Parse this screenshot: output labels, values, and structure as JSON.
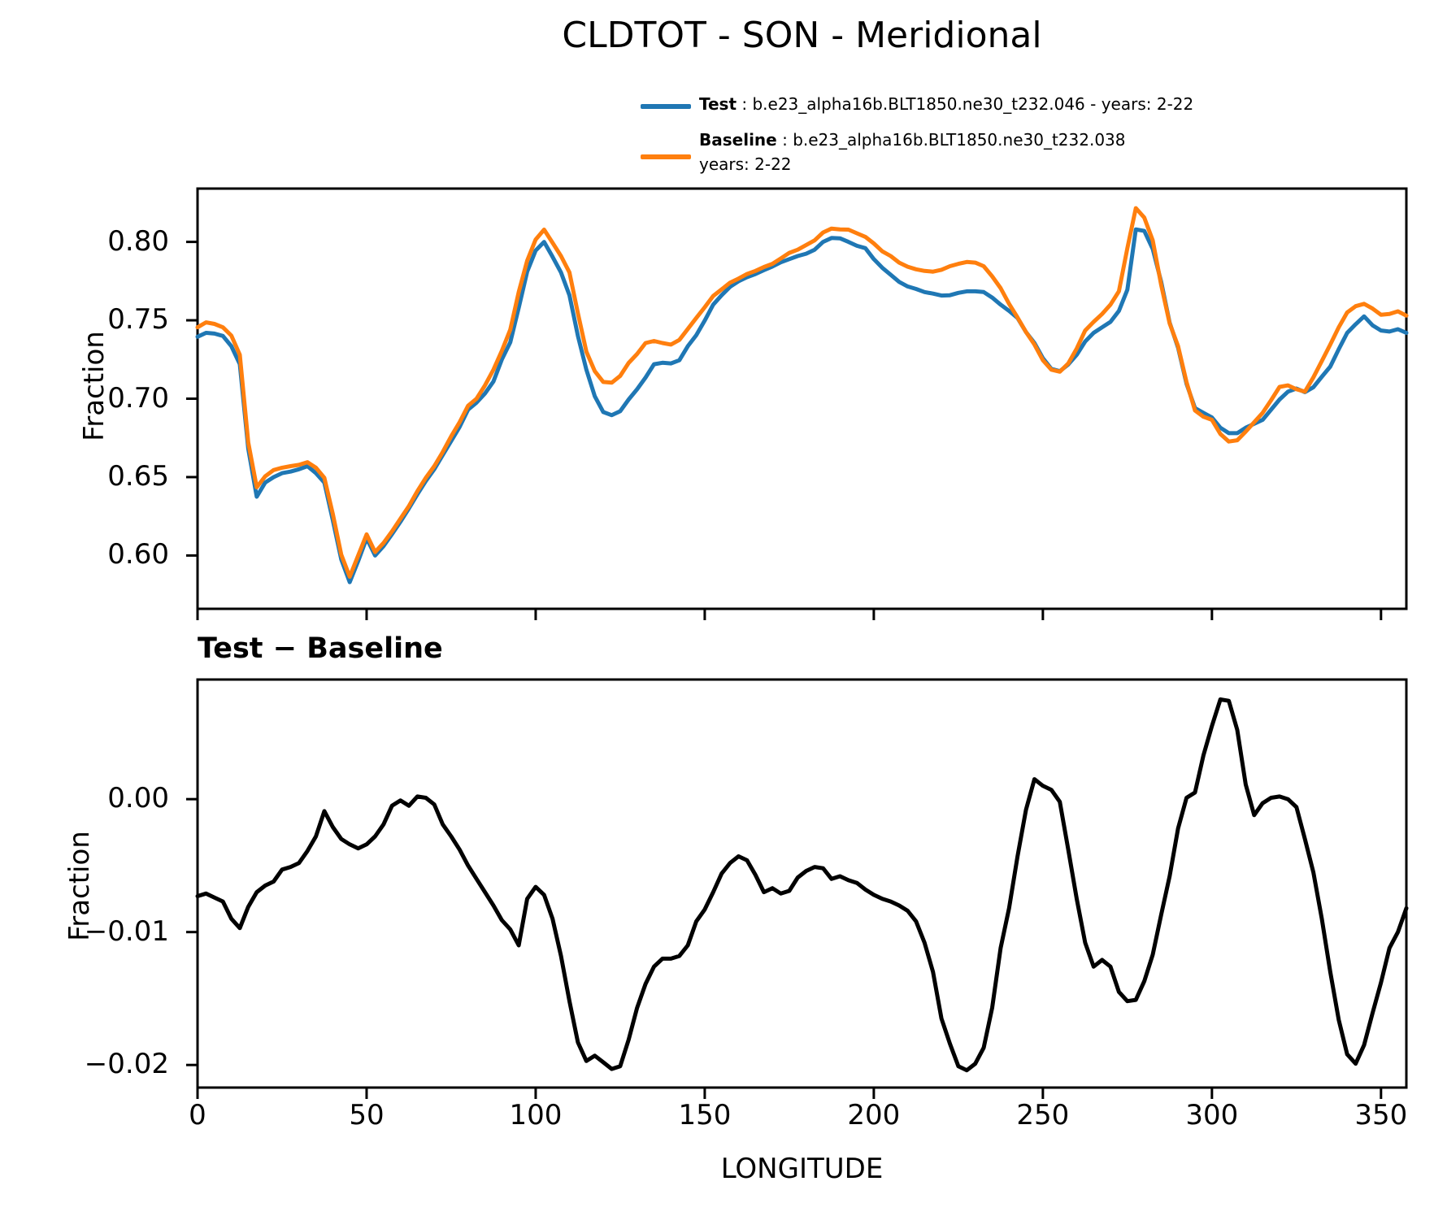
{
  "title": "CLDTOT - SON - Meridional",
  "legend": {
    "test_label": "Test",
    "test_rest": " : b.e23_alpha16b.BLT1850.ne30_t232.046 - years: 2-22",
    "baseline_label": "Baseline",
    "baseline_rest": " : b.e23_alpha16b.BLT1850.ne30_t232.038",
    "baseline_years": "years: 2-22",
    "test_color": "#1f77b4",
    "baseline_color": "#ff7f0e"
  },
  "chart_data": [
    {
      "type": "line",
      "title": "",
      "ylabel": "Fraction",
      "xlabel": "",
      "xlim": [
        0,
        357.5
      ],
      "ylim": [
        0.566,
        0.834
      ],
      "grid": false,
      "legend_position": "above-right",
      "yticks": [
        {
          "v": 0.8,
          "label": "0.80"
        },
        {
          "v": 0.75,
          "label": "0.75"
        },
        {
          "v": 0.7,
          "label": "0.70"
        },
        {
          "v": 0.65,
          "label": "0.65"
        },
        {
          "v": 0.6,
          "label": "0.60"
        }
      ],
      "xticks": [
        {
          "v": 0,
          "label": ""
        },
        {
          "v": 50,
          "label": ""
        },
        {
          "v": 100,
          "label": ""
        },
        {
          "v": 150,
          "label": ""
        },
        {
          "v": 200,
          "label": ""
        },
        {
          "v": 250,
          "label": ""
        },
        {
          "v": 300,
          "label": ""
        },
        {
          "v": 350,
          "label": ""
        }
      ],
      "x": [
        0,
        2.5,
        5,
        7.5,
        10,
        12.5,
        15,
        17.5,
        20,
        22.5,
        25,
        27.5,
        30,
        32.5,
        35,
        37.5,
        40,
        42.5,
        45,
        47.5,
        50,
        52.5,
        55,
        57.5,
        60,
        62.5,
        65,
        67.5,
        70,
        72.5,
        75,
        77.5,
        80,
        82.5,
        85,
        87.5,
        90,
        92.5,
        95,
        97.5,
        100,
        102.5,
        105,
        107.5,
        110,
        112.5,
        115,
        117.5,
        120,
        122.5,
        125,
        127.5,
        130,
        132.5,
        135,
        137.5,
        140,
        142.5,
        145,
        147.5,
        150,
        152.5,
        155,
        157.5,
        160,
        162.5,
        165,
        167.5,
        170,
        172.5,
        175,
        177.5,
        180,
        182.5,
        185,
        187.5,
        190,
        192.5,
        195,
        197.5,
        200,
        202.5,
        205,
        207.5,
        210,
        212.5,
        215,
        217.5,
        220,
        222.5,
        225,
        227.5,
        230,
        232.5,
        235,
        237.5,
        240,
        242.5,
        245,
        247.5,
        250,
        252.5,
        255,
        257.5,
        260,
        262.5,
        265,
        267.5,
        270,
        272.5,
        275,
        277.5,
        280,
        282.5,
        285,
        287.5,
        290,
        292.5,
        295,
        297.5,
        300,
        302.5,
        305,
        307.5,
        310,
        312.5,
        315,
        317.5,
        320,
        322.5,
        325,
        327.5,
        330,
        332.5,
        335,
        337.5,
        340,
        342.5,
        345,
        347.5,
        350,
        352.5,
        355,
        357.5
      ],
      "series": [
        {
          "name": "Test",
          "color": "#1f77b4",
          "values": [
            0.7395,
            0.742,
            0.7415,
            0.74,
            0.7335,
            0.722,
            0.668,
            0.6375,
            0.6465,
            0.65,
            0.6525,
            0.6535,
            0.655,
            0.657,
            0.6525,
            0.6465,
            0.6225,
            0.5975,
            0.583,
            0.5965,
            0.611,
            0.6,
            0.606,
            0.6136,
            0.6215,
            0.63,
            0.639,
            0.6475,
            0.655,
            0.664,
            0.673,
            0.682,
            0.693,
            0.6975,
            0.7033,
            0.711,
            0.725,
            0.736,
            0.758,
            0.781,
            0.7945,
            0.8,
            0.7905,
            0.7805,
            0.766,
            0.74,
            0.7185,
            0.7015,
            0.6915,
            0.6895,
            0.692,
            0.6995,
            0.706,
            0.7135,
            0.722,
            0.7229,
            0.7225,
            0.7245,
            0.7335,
            0.7405,
            0.7498,
            0.76,
            0.766,
            0.7714,
            0.7749,
            0.7775,
            0.7795,
            0.782,
            0.7843,
            0.787,
            0.789,
            0.791,
            0.7925,
            0.795,
            0.8,
            0.8025,
            0.8023,
            0.8,
            0.7975,
            0.796,
            0.789,
            0.7835,
            0.779,
            0.7745,
            0.7716,
            0.77,
            0.768,
            0.767,
            0.7658,
            0.766,
            0.7675,
            0.7685,
            0.7685,
            0.768,
            0.7645,
            0.76,
            0.756,
            0.7515,
            0.7425,
            0.7355,
            0.7258,
            0.719,
            0.7175,
            0.7218,
            0.728,
            0.7365,
            0.742,
            0.7455,
            0.749,
            0.756,
            0.7695,
            0.808,
            0.807,
            0.7955,
            0.7745,
            0.7485,
            0.7325,
            0.7095,
            0.694,
            0.691,
            0.688,
            0.6815,
            0.678,
            0.678,
            0.6815,
            0.684,
            0.6865,
            0.693,
            0.6995,
            0.7045,
            0.7065,
            0.7042,
            0.7073,
            0.714,
            0.7205,
            0.7315,
            0.742,
            0.7475,
            0.7525,
            0.7468,
            0.7435,
            0.7428,
            0.7443,
            0.742
          ]
        },
        {
          "name": "Baseline",
          "color": "#ff7f0e",
          "values": [
            0.7455,
            0.7487,
            0.7477,
            0.7455,
            0.7402,
            0.728,
            0.672,
            0.6435,
            0.6505,
            0.6545,
            0.656,
            0.657,
            0.6578,
            0.6595,
            0.656,
            0.6495,
            0.6265,
            0.6005,
            0.5865,
            0.6,
            0.6135,
            0.6022,
            0.608,
            0.6154,
            0.6235,
            0.6315,
            0.641,
            0.6495,
            0.657,
            0.666,
            0.676,
            0.685,
            0.6955,
            0.7,
            0.7085,
            0.7185,
            0.7305,
            0.744,
            0.768,
            0.788,
            0.8015,
            0.8078,
            0.7995,
            0.791,
            0.7805,
            0.7545,
            0.73,
            0.7175,
            0.7107,
            0.7102,
            0.7145,
            0.7228,
            0.7285,
            0.7355,
            0.7368,
            0.7355,
            0.7345,
            0.7375,
            0.7445,
            0.7515,
            0.7583,
            0.7655,
            0.7697,
            0.774,
            0.7766,
            0.7795,
            0.7815,
            0.784,
            0.786,
            0.7894,
            0.793,
            0.795,
            0.798,
            0.801,
            0.806,
            0.8085,
            0.808,
            0.8078,
            0.8055,
            0.8032,
            0.799,
            0.794,
            0.791,
            0.7868,
            0.7842,
            0.7825,
            0.7815,
            0.781,
            0.7822,
            0.7845,
            0.786,
            0.7872,
            0.7868,
            0.7845,
            0.778,
            0.7705,
            0.7605,
            0.7518,
            0.7425,
            0.7345,
            0.7245,
            0.7185,
            0.7172,
            0.7225,
            0.732,
            0.7435,
            0.749,
            0.754,
            0.76,
            0.7685,
            0.796,
            0.8215,
            0.8155,
            0.801,
            0.7725,
            0.748,
            0.7335,
            0.7105,
            0.6925,
            0.6885,
            0.6865,
            0.6775,
            0.6727,
            0.6735,
            0.679,
            0.685,
            0.691,
            0.699,
            0.7075,
            0.7085,
            0.706,
            0.7045,
            0.7136,
            0.724,
            0.7345,
            0.7455,
            0.755,
            0.759,
            0.7605,
            0.7575,
            0.7535,
            0.754,
            0.7557,
            0.753
          ]
        }
      ]
    },
    {
      "type": "line",
      "title": "Test − Baseline",
      "ylabel": "Fraction",
      "xlabel": "LONGITUDE",
      "xlim": [
        0,
        357.5
      ],
      "ylim": [
        -0.0217,
        0.009
      ],
      "grid": false,
      "legend_position": "none",
      "yticks": [
        {
          "v": 0.0,
          "label": "0.00"
        },
        {
          "v": -0.01,
          "label": "−0.01"
        },
        {
          "v": -0.02,
          "label": "−0.02"
        }
      ],
      "xticks": [
        {
          "v": 0,
          "label": "0"
        },
        {
          "v": 50,
          "label": "50"
        },
        {
          "v": 100,
          "label": "100"
        },
        {
          "v": 150,
          "label": "150"
        },
        {
          "v": 200,
          "label": "200"
        },
        {
          "v": 250,
          "label": "250"
        },
        {
          "v": 300,
          "label": "300"
        },
        {
          "v": 350,
          "label": "350"
        }
      ],
      "x": [
        0,
        2.5,
        5,
        7.5,
        10,
        12.5,
        15,
        17.5,
        20,
        22.5,
        25,
        27.5,
        30,
        32.5,
        35,
        37.5,
        40,
        42.5,
        45,
        47.5,
        50,
        52.5,
        55,
        57.5,
        60,
        62.5,
        65,
        67.5,
        70,
        72.5,
        75,
        77.5,
        80,
        82.5,
        85,
        87.5,
        90,
        92.5,
        95,
        97.5,
        100,
        102.5,
        105,
        107.5,
        110,
        112.5,
        115,
        117.5,
        120,
        122.5,
        125,
        127.5,
        130,
        132.5,
        135,
        137.5,
        140,
        142.5,
        145,
        147.5,
        150,
        152.5,
        155,
        157.5,
        160,
        162.5,
        165,
        167.5,
        170,
        172.5,
        175,
        177.5,
        180,
        182.5,
        185,
        187.5,
        190,
        192.5,
        195,
        197.5,
        200,
        202.5,
        205,
        207.5,
        210,
        212.5,
        215,
        217.5,
        220,
        222.5,
        225,
        227.5,
        230,
        232.5,
        235,
        237.5,
        240,
        242.5,
        245,
        247.5,
        250,
        252.5,
        255,
        257.5,
        260,
        262.5,
        265,
        267.5,
        270,
        272.5,
        275,
        277.5,
        280,
        282.5,
        285,
        287.5,
        290,
        292.5,
        295,
        297.5,
        300,
        302.5,
        305,
        307.5,
        310,
        312.5,
        315,
        317.5,
        320,
        322.5,
        325,
        327.5,
        330,
        332.5,
        335,
        337.5,
        340,
        342.5,
        345,
        347.5,
        350,
        352.5,
        355,
        357.5
      ],
      "series": [
        {
          "name": "Test − Baseline",
          "color": "#000000",
          "values": [
            -0.0073,
            -0.0071,
            -0.0074,
            -0.0077,
            -0.009,
            -0.0097,
            -0.0081,
            -0.007,
            -0.0065,
            -0.0062,
            -0.0053,
            -0.0051,
            -0.0048,
            -0.0039,
            -0.0028,
            -0.0009,
            -0.0021,
            -0.003,
            -0.0034,
            -0.0037,
            -0.0034,
            -0.0028,
            -0.0019,
            -0.0005,
            -0.0001,
            -0.0005,
            0.0002,
            0.0001,
            -0.0004,
            -0.0019,
            -0.0028,
            -0.0038,
            -0.005,
            -0.006,
            -0.007,
            -0.008,
            -0.0091,
            -0.0098,
            -0.011,
            -0.0075,
            -0.0066,
            -0.0072,
            -0.009,
            -0.0118,
            -0.0152,
            -0.0183,
            -0.0197,
            -0.0193,
            -0.0198,
            -0.0203,
            -0.0201,
            -0.0181,
            -0.0157,
            -0.0139,
            -0.0126,
            -0.012,
            -0.012,
            -0.0118,
            -0.011,
            -0.0092,
            -0.0083,
            -0.007,
            -0.0056,
            -0.0048,
            -0.0043,
            -0.0046,
            -0.0057,
            -0.007,
            -0.0067,
            -0.0071,
            -0.0069,
            -0.0059,
            -0.0054,
            -0.0051,
            -0.0052,
            -0.006,
            -0.0058,
            -0.0061,
            -0.0063,
            -0.0068,
            -0.0072,
            -0.0075,
            -0.0077,
            -0.008,
            -0.0084,
            -0.0092,
            -0.0108,
            -0.013,
            -0.0165,
            -0.0184,
            -0.0201,
            -0.0204,
            -0.0199,
            -0.0187,
            -0.0157,
            -0.0112,
            -0.0082,
            -0.0043,
            -0.0008,
            0.0015,
            0.001,
            0.0007,
            -0.0002,
            -0.0038,
            -0.0075,
            -0.0108,
            -0.0126,
            -0.0121,
            -0.0126,
            -0.0145,
            -0.0152,
            -0.0151,
            -0.0137,
            -0.0117,
            -0.0087,
            -0.0058,
            -0.0022,
            0.0001,
            0.0005,
            0.0033,
            0.0055,
            0.0075,
            0.0074,
            0.0052,
            0.0011,
            -0.0012,
            -0.0003,
            0.0001,
            0.0002,
            0.0,
            -0.0006,
            -0.003,
            -0.0055,
            -0.009,
            -0.013,
            -0.0166,
            -0.0192,
            -0.0199,
            -0.0185,
            -0.0161,
            -0.0138,
            -0.0112,
            -0.01,
            -0.0082
          ]
        }
      ]
    }
  ]
}
